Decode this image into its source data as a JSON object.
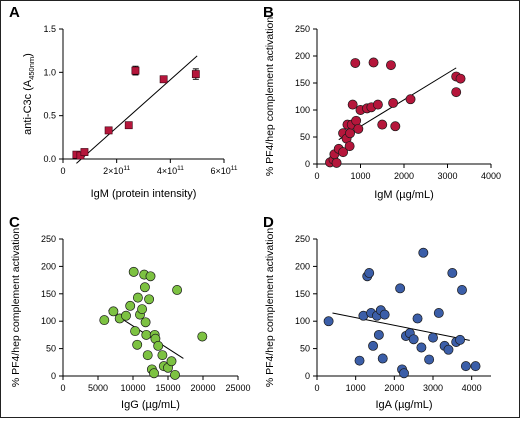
{
  "chart_data": [
    {
      "panel": "A",
      "type": "scatter",
      "xlabel": "IgM (protein intensity)",
      "ylabel": "anti-C3c (A450nm)",
      "xlim": [
        0,
        600000000000
      ],
      "ylim": [
        0,
        1.5
      ],
      "x_ticks": [
        {
          "v": 0,
          "label": "0"
        },
        {
          "v": 200000000000,
          "label": "2×10",
          "exp": "11"
        },
        {
          "v": 400000000000,
          "label": "4×10",
          "exp": "11"
        },
        {
          "v": 600000000000,
          "label": "6×10",
          "exp": "11"
        }
      ],
      "y_ticks": [
        {
          "v": 0,
          "label": "0.0"
        },
        {
          "v": 0.5,
          "label": "0.5"
        },
        {
          "v": 1.0,
          "label": "1.0"
        },
        {
          "v": 1.5,
          "label": "1.5"
        }
      ],
      "marker": "square",
      "color": "#b5163b",
      "points": [
        {
          "x": 50000000000,
          "y": 0.05
        },
        {
          "x": 65000000000,
          "y": 0.04
        },
        {
          "x": 80000000000,
          "y": 0.08
        },
        {
          "x": 170000000000,
          "y": 0.33
        },
        {
          "x": 245000000000,
          "y": 0.39
        },
        {
          "x": 270000000000,
          "y": 1.02,
          "err": 0.05
        },
        {
          "x": 375000000000,
          "y": 0.92
        },
        {
          "x": 495000000000,
          "y": 0.98,
          "err": 0.06
        }
      ],
      "fit": {
        "x0": 50000000000,
        "y0": -0.05,
        "x1": 500000000000,
        "y1": 1.19
      }
    },
    {
      "panel": "B",
      "type": "scatter",
      "xlabel": "IgM (µg/mL)",
      "ylabel": "% PF4/hep complement activation",
      "xlim": [
        0,
        4000
      ],
      "ylim": [
        0,
        250
      ],
      "x_ticks": [
        {
          "v": 0,
          "label": "0"
        },
        {
          "v": 1000,
          "label": "1000"
        },
        {
          "v": 2000,
          "label": "2000"
        },
        {
          "v": 3000,
          "label": "3000"
        },
        {
          "v": 4000,
          "label": "4000"
        }
      ],
      "y_ticks": [
        {
          "v": 0,
          "label": "0"
        },
        {
          "v": 50,
          "label": "50"
        },
        {
          "v": 100,
          "label": "100"
        },
        {
          "v": 150,
          "label": "150"
        },
        {
          "v": 200,
          "label": "200"
        },
        {
          "v": 250,
          "label": "250"
        }
      ],
      "marker": "circle",
      "color": "#b5163b",
      "points": [
        {
          "x": 300,
          "y": 3
        },
        {
          "x": 380,
          "y": 8
        },
        {
          "x": 400,
          "y": 18
        },
        {
          "x": 450,
          "y": 2
        },
        {
          "x": 500,
          "y": 28
        },
        {
          "x": 600,
          "y": 22
        },
        {
          "x": 600,
          "y": 57
        },
        {
          "x": 680,
          "y": 47
        },
        {
          "x": 700,
          "y": 73
        },
        {
          "x": 750,
          "y": 33
        },
        {
          "x": 760,
          "y": 57
        },
        {
          "x": 800,
          "y": 73
        },
        {
          "x": 820,
          "y": 110
        },
        {
          "x": 880,
          "y": 187
        },
        {
          "x": 900,
          "y": 80
        },
        {
          "x": 950,
          "y": 65
        },
        {
          "x": 1000,
          "y": 100
        },
        {
          "x": 1150,
          "y": 103
        },
        {
          "x": 1250,
          "y": 105
        },
        {
          "x": 1300,
          "y": 188
        },
        {
          "x": 1400,
          "y": 110
        },
        {
          "x": 1500,
          "y": 73
        },
        {
          "x": 1700,
          "y": 183
        },
        {
          "x": 1750,
          "y": 113
        },
        {
          "x": 1800,
          "y": 70
        },
        {
          "x": 2150,
          "y": 120
        },
        {
          "x": 3200,
          "y": 162
        },
        {
          "x": 3300,
          "y": 158
        },
        {
          "x": 3200,
          "y": 133
        }
      ],
      "fit": {
        "x0": 500,
        "y0": 45,
        "x1": 3200,
        "y1": 178
      }
    },
    {
      "panel": "C",
      "type": "scatter",
      "xlabel": "IgG (µg/mL)",
      "ylabel": "% PF4/hep complement activation",
      "xlim": [
        0,
        25000
      ],
      "ylim": [
        0,
        250
      ],
      "x_ticks": [
        {
          "v": 0,
          "label": "0"
        },
        {
          "v": 5000,
          "label": "5000"
        },
        {
          "v": 10000,
          "label": "10000"
        },
        {
          "v": 15000,
          "label": "15000"
        },
        {
          "v": 20000,
          "label": "20000"
        },
        {
          "v": 25000,
          "label": "25000"
        }
      ],
      "y_ticks": [
        {
          "v": 0,
          "label": "0"
        },
        {
          "v": 50,
          "label": "50"
        },
        {
          "v": 100,
          "label": "100"
        },
        {
          "v": 150,
          "label": "150"
        },
        {
          "v": 200,
          "label": "200"
        },
        {
          "v": 250,
          "label": "250"
        }
      ],
      "marker": "circle",
      "color": "#7dc242",
      "points": [
        {
          "x": 5900,
          "y": 102
        },
        {
          "x": 7200,
          "y": 118
        },
        {
          "x": 8100,
          "y": 105
        },
        {
          "x": 9000,
          "y": 110
        },
        {
          "x": 9600,
          "y": 128
        },
        {
          "x": 10100,
          "y": 190
        },
        {
          "x": 10300,
          "y": 82
        },
        {
          "x": 10600,
          "y": 57
        },
        {
          "x": 10700,
          "y": 143
        },
        {
          "x": 11000,
          "y": 112
        },
        {
          "x": 11300,
          "y": 122
        },
        {
          "x": 11600,
          "y": 185
        },
        {
          "x": 11700,
          "y": 162
        },
        {
          "x": 11800,
          "y": 98
        },
        {
          "x": 11900,
          "y": 75
        },
        {
          "x": 12100,
          "y": 38
        },
        {
          "x": 12300,
          "y": 140
        },
        {
          "x": 12500,
          "y": 182
        },
        {
          "x": 12700,
          "y": 12
        },
        {
          "x": 13000,
          "y": 5
        },
        {
          "x": 13100,
          "y": 75
        },
        {
          "x": 13200,
          "y": 68
        },
        {
          "x": 13600,
          "y": 55
        },
        {
          "x": 14200,
          "y": 38
        },
        {
          "x": 14400,
          "y": 18
        },
        {
          "x": 15000,
          "y": 15
        },
        {
          "x": 15500,
          "y": 27
        },
        {
          "x": 16000,
          "y": 2
        },
        {
          "x": 16300,
          "y": 157
        },
        {
          "x": 19900,
          "y": 72
        }
      ],
      "fit": {
        "x0": 6500,
        "y0": 120,
        "x1": 17200,
        "y1": 32
      }
    },
    {
      "panel": "D",
      "type": "scatter",
      "xlabel": "IgA (µg/mL)",
      "ylabel": "% PF4/hep complement activation",
      "xlim": [
        0,
        4500
      ],
      "ylim": [
        0,
        250
      ],
      "x_ticks": [
        {
          "v": 0,
          "label": "0"
        },
        {
          "v": 1000,
          "label": "1000"
        },
        {
          "v": 2000,
          "label": "2000"
        },
        {
          "v": 3000,
          "label": "3000"
        },
        {
          "v": 4000,
          "label": "4000"
        }
      ],
      "y_ticks": [
        {
          "v": 0,
          "label": "0"
        },
        {
          "v": 50,
          "label": "50"
        },
        {
          "v": 100,
          "label": "100"
        },
        {
          "v": 150,
          "label": "150"
        },
        {
          "v": 200,
          "label": "200"
        },
        {
          "v": 250,
          "label": "250"
        }
      ],
      "marker": "circle",
      "color": "#3b5ea8",
      "points": [
        {
          "x": 300,
          "y": 100
        },
        {
          "x": 1100,
          "y": 28
        },
        {
          "x": 1200,
          "y": 110
        },
        {
          "x": 1300,
          "y": 182
        },
        {
          "x": 1350,
          "y": 188
        },
        {
          "x": 1400,
          "y": 115
        },
        {
          "x": 1450,
          "y": 55
        },
        {
          "x": 1550,
          "y": 110
        },
        {
          "x": 1600,
          "y": 75
        },
        {
          "x": 1650,
          "y": 120
        },
        {
          "x": 1700,
          "y": 32
        },
        {
          "x": 1750,
          "y": 112
        },
        {
          "x": 2150,
          "y": 160
        },
        {
          "x": 2200,
          "y": 12
        },
        {
          "x": 2250,
          "y": 5
        },
        {
          "x": 2300,
          "y": 73
        },
        {
          "x": 2400,
          "y": 78
        },
        {
          "x": 2500,
          "y": 67
        },
        {
          "x": 2600,
          "y": 105
        },
        {
          "x": 2700,
          "y": 52
        },
        {
          "x": 2750,
          "y": 225
        },
        {
          "x": 2900,
          "y": 30
        },
        {
          "x": 3000,
          "y": 70
        },
        {
          "x": 3150,
          "y": 115
        },
        {
          "x": 3300,
          "y": 55
        },
        {
          "x": 3400,
          "y": 48
        },
        {
          "x": 3500,
          "y": 188
        },
        {
          "x": 3600,
          "y": 62
        },
        {
          "x": 3700,
          "y": 66
        },
        {
          "x": 3750,
          "y": 157
        },
        {
          "x": 3850,
          "y": 18
        },
        {
          "x": 4100,
          "y": 18
        }
      ],
      "fit": {
        "x0": 400,
        "y0": 115,
        "x1": 3950,
        "y1": 65
      }
    }
  ]
}
